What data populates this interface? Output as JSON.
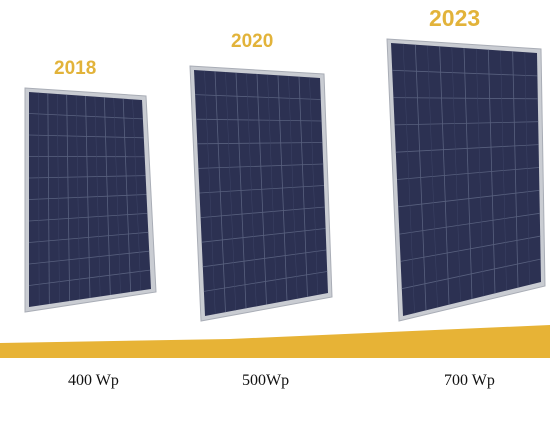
{
  "panels": [
    {
      "year": "2018",
      "power": "400 Wp"
    },
    {
      "year": "2020",
      "power": "500Wp"
    },
    {
      "year": "2023",
      "power": "700 Wp"
    }
  ],
  "colors": {
    "year_text": "#e2b33a",
    "band": "#e7b336",
    "panel_frame": "#c9ccd2",
    "cell": "#2c3152",
    "cell_line": "#58607e"
  }
}
